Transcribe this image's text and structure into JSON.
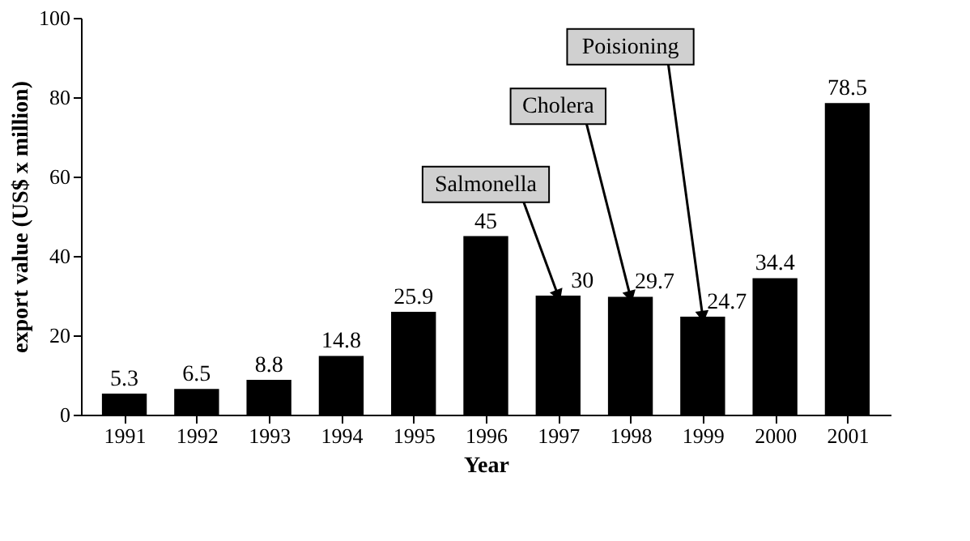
{
  "chart_data": {
    "type": "bar",
    "xlabel": "Year",
    "ylabel": "export value (US$ x million)",
    "categories": [
      "1991",
      "1992",
      "1993",
      "1994",
      "1995",
      "1996",
      "1997",
      "1998",
      "1999",
      "2000",
      "2001"
    ],
    "values": [
      5.3,
      6.5,
      8.8,
      14.8,
      25.9,
      45,
      30,
      29.7,
      24.7,
      34.4,
      78.5
    ],
    "color": "#000000",
    "ylim": [
      0,
      100
    ],
    "yticks": [
      0,
      20,
      40,
      60,
      80,
      100
    ],
    "grid": false,
    "data_labels": true,
    "annotations": [
      {
        "text": "Salmonella",
        "x": "1997",
        "y": 30
      },
      {
        "text": "Cholera",
        "x": "1998",
        "y": 29.7
      },
      {
        "text": "Poisioning",
        "x": "1999",
        "y": 24.7
      }
    ]
  }
}
